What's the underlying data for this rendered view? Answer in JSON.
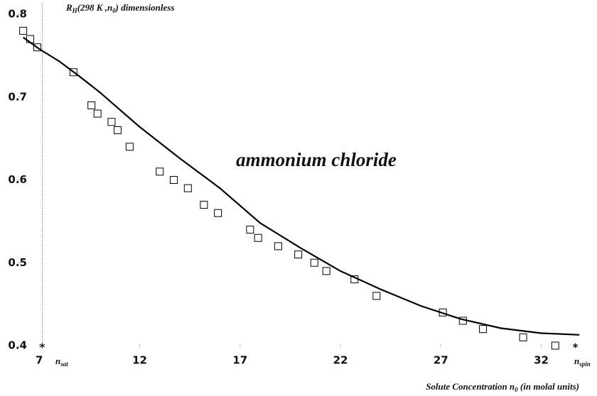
{
  "chart_data": {
    "type": "scatter",
    "annotation_label": [
      {
        "text": "R",
        "sub": false
      },
      {
        "text": "H",
        "sub": true
      },
      {
        "text": "(298 K ,n",
        "sub": false
      },
      {
        "text": "0",
        "sub": true
      },
      {
        "text": ") dimensionless",
        "sub": false
      }
    ],
    "title": "ammonium chloride",
    "x_label": [
      {
        "text": "Solute Concentration n",
        "sub": false
      },
      {
        "text": "0",
        "sub": true
      },
      {
        "text": " (in molal units)",
        "sub": false
      }
    ],
    "nsat_label": [
      {
        "text": "n",
        "sub": false
      },
      {
        "text": "sat",
        "sub": true
      }
    ],
    "nspin_label": [
      {
        "text": "n",
        "sub": false
      },
      {
        "text": "spin",
        "sub": true
      }
    ],
    "nsat_x": 7.15,
    "nspin_x": 33.7,
    "xlim": [
      6,
      34
    ],
    "xticks": [
      7,
      12,
      17,
      22,
      27,
      32
    ],
    "ylim": [
      0.4,
      0.8
    ],
    "yticks": [
      0.4,
      0.5,
      0.6,
      0.7,
      0.8
    ],
    "points": {
      "color": "#000000",
      "x": [
        6.2,
        6.55,
        6.9,
        8.7,
        9.6,
        9.9,
        10.6,
        10.9,
        11.5,
        13.0,
        13.7,
        14.4,
        15.2,
        15.9,
        17.5,
        17.9,
        18.9,
        19.9,
        20.7,
        21.3,
        22.7,
        23.8,
        27.1,
        28.1,
        29.1,
        31.1,
        32.7
      ],
      "values": [
        0.78,
        0.77,
        0.76,
        0.73,
        0.69,
        0.68,
        0.67,
        0.66,
        0.64,
        0.61,
        0.6,
        0.59,
        0.57,
        0.56,
        0.54,
        0.53,
        0.52,
        0.51,
        0.5,
        0.49,
        0.48,
        0.46,
        0.44,
        0.43,
        0.42,
        0.41,
        0.4
      ]
    },
    "fit": {
      "color": "#000000",
      "x": [
        6.2,
        7,
        8,
        9,
        10,
        12,
        14,
        16,
        18,
        20,
        22,
        24,
        26,
        28,
        30,
        32,
        33.9
      ],
      "values": [
        0.772,
        0.758,
        0.743,
        0.725,
        0.706,
        0.664,
        0.626,
        0.59,
        0.548,
        0.518,
        0.49,
        0.468,
        0.448,
        0.432,
        0.421,
        0.415,
        0.413
      ]
    }
  }
}
